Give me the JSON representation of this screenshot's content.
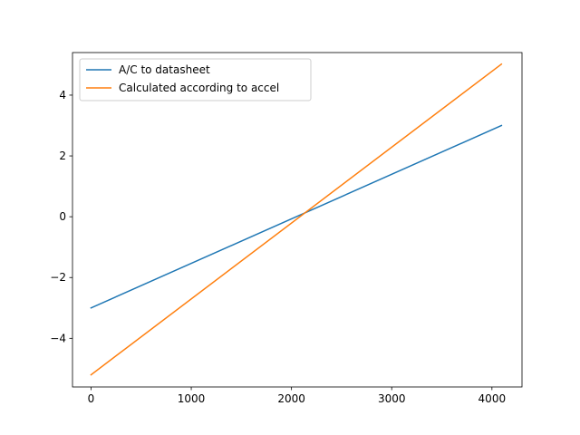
{
  "chart_data": {
    "type": "line",
    "title": "",
    "xlabel": "",
    "ylabel": "",
    "xlim": [
      -185,
      4300
    ],
    "ylim": [
      -5.6,
      5.4
    ],
    "x_ticks": [
      0,
      1000,
      2000,
      3000,
      4000
    ],
    "y_ticks": [
      -4,
      -2,
      0,
      2,
      4
    ],
    "x_tick_labels": [
      "0",
      "1000",
      "2000",
      "3000",
      "4000"
    ],
    "y_tick_labels": [
      "−4",
      "−2",
      "0",
      "2",
      "4"
    ],
    "grid": false,
    "legend": {
      "placement": "upper-left"
    },
    "series": [
      {
        "name": "A/C to datasheet",
        "color": "#1f77b4",
        "x": [
          0,
          4095
        ],
        "y": [
          -3.0,
          3.0
        ]
      },
      {
        "name": "Calculated according to accel",
        "color": "#ff7f0e",
        "x": [
          0,
          4095
        ],
        "y": [
          -5.2,
          5.02
        ]
      }
    ]
  }
}
